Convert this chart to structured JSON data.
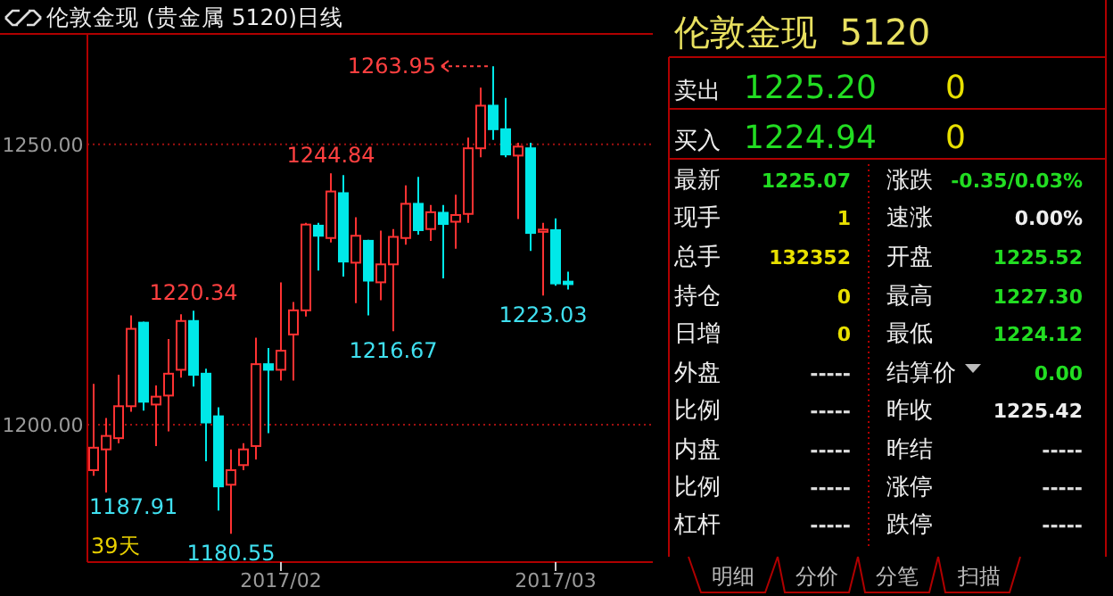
{
  "chart_data": [
    {
      "type": "candlestick",
      "title": "伦敦金现 (贵金属 5120)日线",
      "categories": [
        null,
        null,
        null,
        null,
        null,
        null,
        null,
        null,
        null,
        null,
        null,
        null,
        null,
        null,
        null,
        "2017/02",
        null,
        null,
        null,
        null,
        null,
        null,
        null,
        null,
        null,
        null,
        null,
        null,
        null,
        null,
        null,
        null,
        null,
        null,
        null,
        null,
        null,
        "2017/03",
        null
      ],
      "ohlc": [
        [
          1191.9,
          1207.3,
          1190.9,
          1195.9
        ],
        [
          1195.6,
          1201.2,
          1187.91,
          1198.0
        ],
        [
          1197.6,
          1208.9,
          1196.7,
          1203.3
        ],
        [
          1203.3,
          1219.5,
          1202.3,
          1217.1
        ],
        [
          1218.2,
          1218.4,
          1202.5,
          1204.1
        ],
        [
          1203.6,
          1207.0,
          1196.2,
          1205.0
        ],
        [
          1205.2,
          1215.3,
          1198.8,
          1209.1
        ],
        [
          1209.8,
          1219.7,
          1208.4,
          1218.5
        ],
        [
          1218.5,
          1220.34,
          1206.8,
          1208.9
        ],
        [
          1209.1,
          1210.0,
          1193.5,
          1200.4
        ],
        [
          1201.5,
          1203.1,
          1184.7,
          1189.0
        ],
        [
          1189.3,
          1195.6,
          1180.55,
          1191.9
        ],
        [
          1192.8,
          1196.7,
          1191.9,
          1195.6
        ],
        [
          1196.2,
          1215.5,
          1193.8,
          1210.8
        ],
        [
          1210.8,
          1213.7,
          1198.5,
          1209.8
        ],
        [
          1209.8,
          1225.4,
          1207.9,
          1213.2
        ],
        [
          1216.1,
          1221.9,
          1207.9,
          1220.4
        ],
        [
          1220.4,
          1236.0,
          1219.3,
          1235.7
        ],
        [
          1235.5,
          1236.0,
          1227.5,
          1233.7
        ],
        [
          1233.3,
          1244.84,
          1232.5,
          1241.6
        ],
        [
          1241.3,
          1244.5,
          1226.4,
          1229.1
        ],
        [
          1228.9,
          1237.0,
          1221.7,
          1233.7
        ],
        [
          1232.8,
          1233.0,
          1219.5,
          1225.7
        ],
        [
          1225.4,
          1234.6,
          1222.2,
          1228.6
        ],
        [
          1228.6,
          1234.9,
          1216.67,
          1233.5
        ],
        [
          1233.3,
          1242.7,
          1232.1,
          1239.4
        ],
        [
          1239.4,
          1244.2,
          1233.9,
          1234.7
        ],
        [
          1234.9,
          1239.2,
          1232.8,
          1237.9
        ],
        [
          1237.8,
          1239.2,
          1226.1,
          1235.8
        ],
        [
          1236.2,
          1241.0,
          1231.4,
          1237.4
        ],
        [
          1237.6,
          1251.2,
          1236.0,
          1249.3
        ],
        [
          1249.3,
          1260.1,
          1247.7,
          1256.9
        ],
        [
          1256.9,
          1263.95,
          1250.8,
          1252.7
        ],
        [
          1252.7,
          1258.3,
          1247.7,
          1248.2
        ],
        [
          1248.0,
          1250.3,
          1236.7,
          1249.6
        ],
        [
          1249.3,
          1250.3,
          1231.0,
          1234.2
        ],
        [
          1234.4,
          1236.0,
          1223.03,
          1234.8
        ],
        [
          1234.7,
          1236.8,
          1224.8,
          1225.2
        ],
        [
          1225.52,
          1227.3,
          1224.12,
          1225.07
        ]
      ],
      "ylim": [
        1175.5,
        1269.7
      ],
      "yticks": [
        {
          "value": 1250,
          "label": "1250.00"
        },
        {
          "value": 1200,
          "label": "1200.00"
        }
      ],
      "grid": "y",
      "annotations": [
        "1263.95",
        {
          "text": "1244.84",
          "y": 1244.84
        },
        {
          "text": "1220.34",
          "y": 1220.34
        },
        {
          "text": "1216.67",
          "y": 1216.67
        },
        {
          "text": "1223.03",
          "y": 1223.03
        },
        "1187.91",
        {
          "text": "1180.55",
          "y": 1180.55
        },
        "39天"
      ]
    },
    {
      "type": "other",
      "title": "伦敦金现  5120",
      "annotations": [
        "卖出",
        "1225.20",
        "0",
        "买入",
        "1224.94",
        "0",
        "最新",
        "1225.07",
        "现手",
        "1",
        "总手",
        "132352",
        "持仓",
        "0",
        "日增",
        "0",
        "外盘",
        "-----",
        "比例",
        "-----",
        "内盘",
        "-----",
        "比例",
        "-----",
        "杠杆",
        "-----",
        "涨跌",
        "-0.35/0.03%",
        "速涨",
        "0.00%",
        "开盘",
        "1225.52",
        "最高",
        "1227.30",
        "最低",
        "1224.12",
        "结算价",
        "0.00",
        "昨收",
        "1225.42",
        "昨结",
        "-----",
        "涨停",
        "-----",
        "跌停",
        "-----",
        "明细",
        "分价",
        "分笔",
        "扫描"
      ]
    }
  ]
}
